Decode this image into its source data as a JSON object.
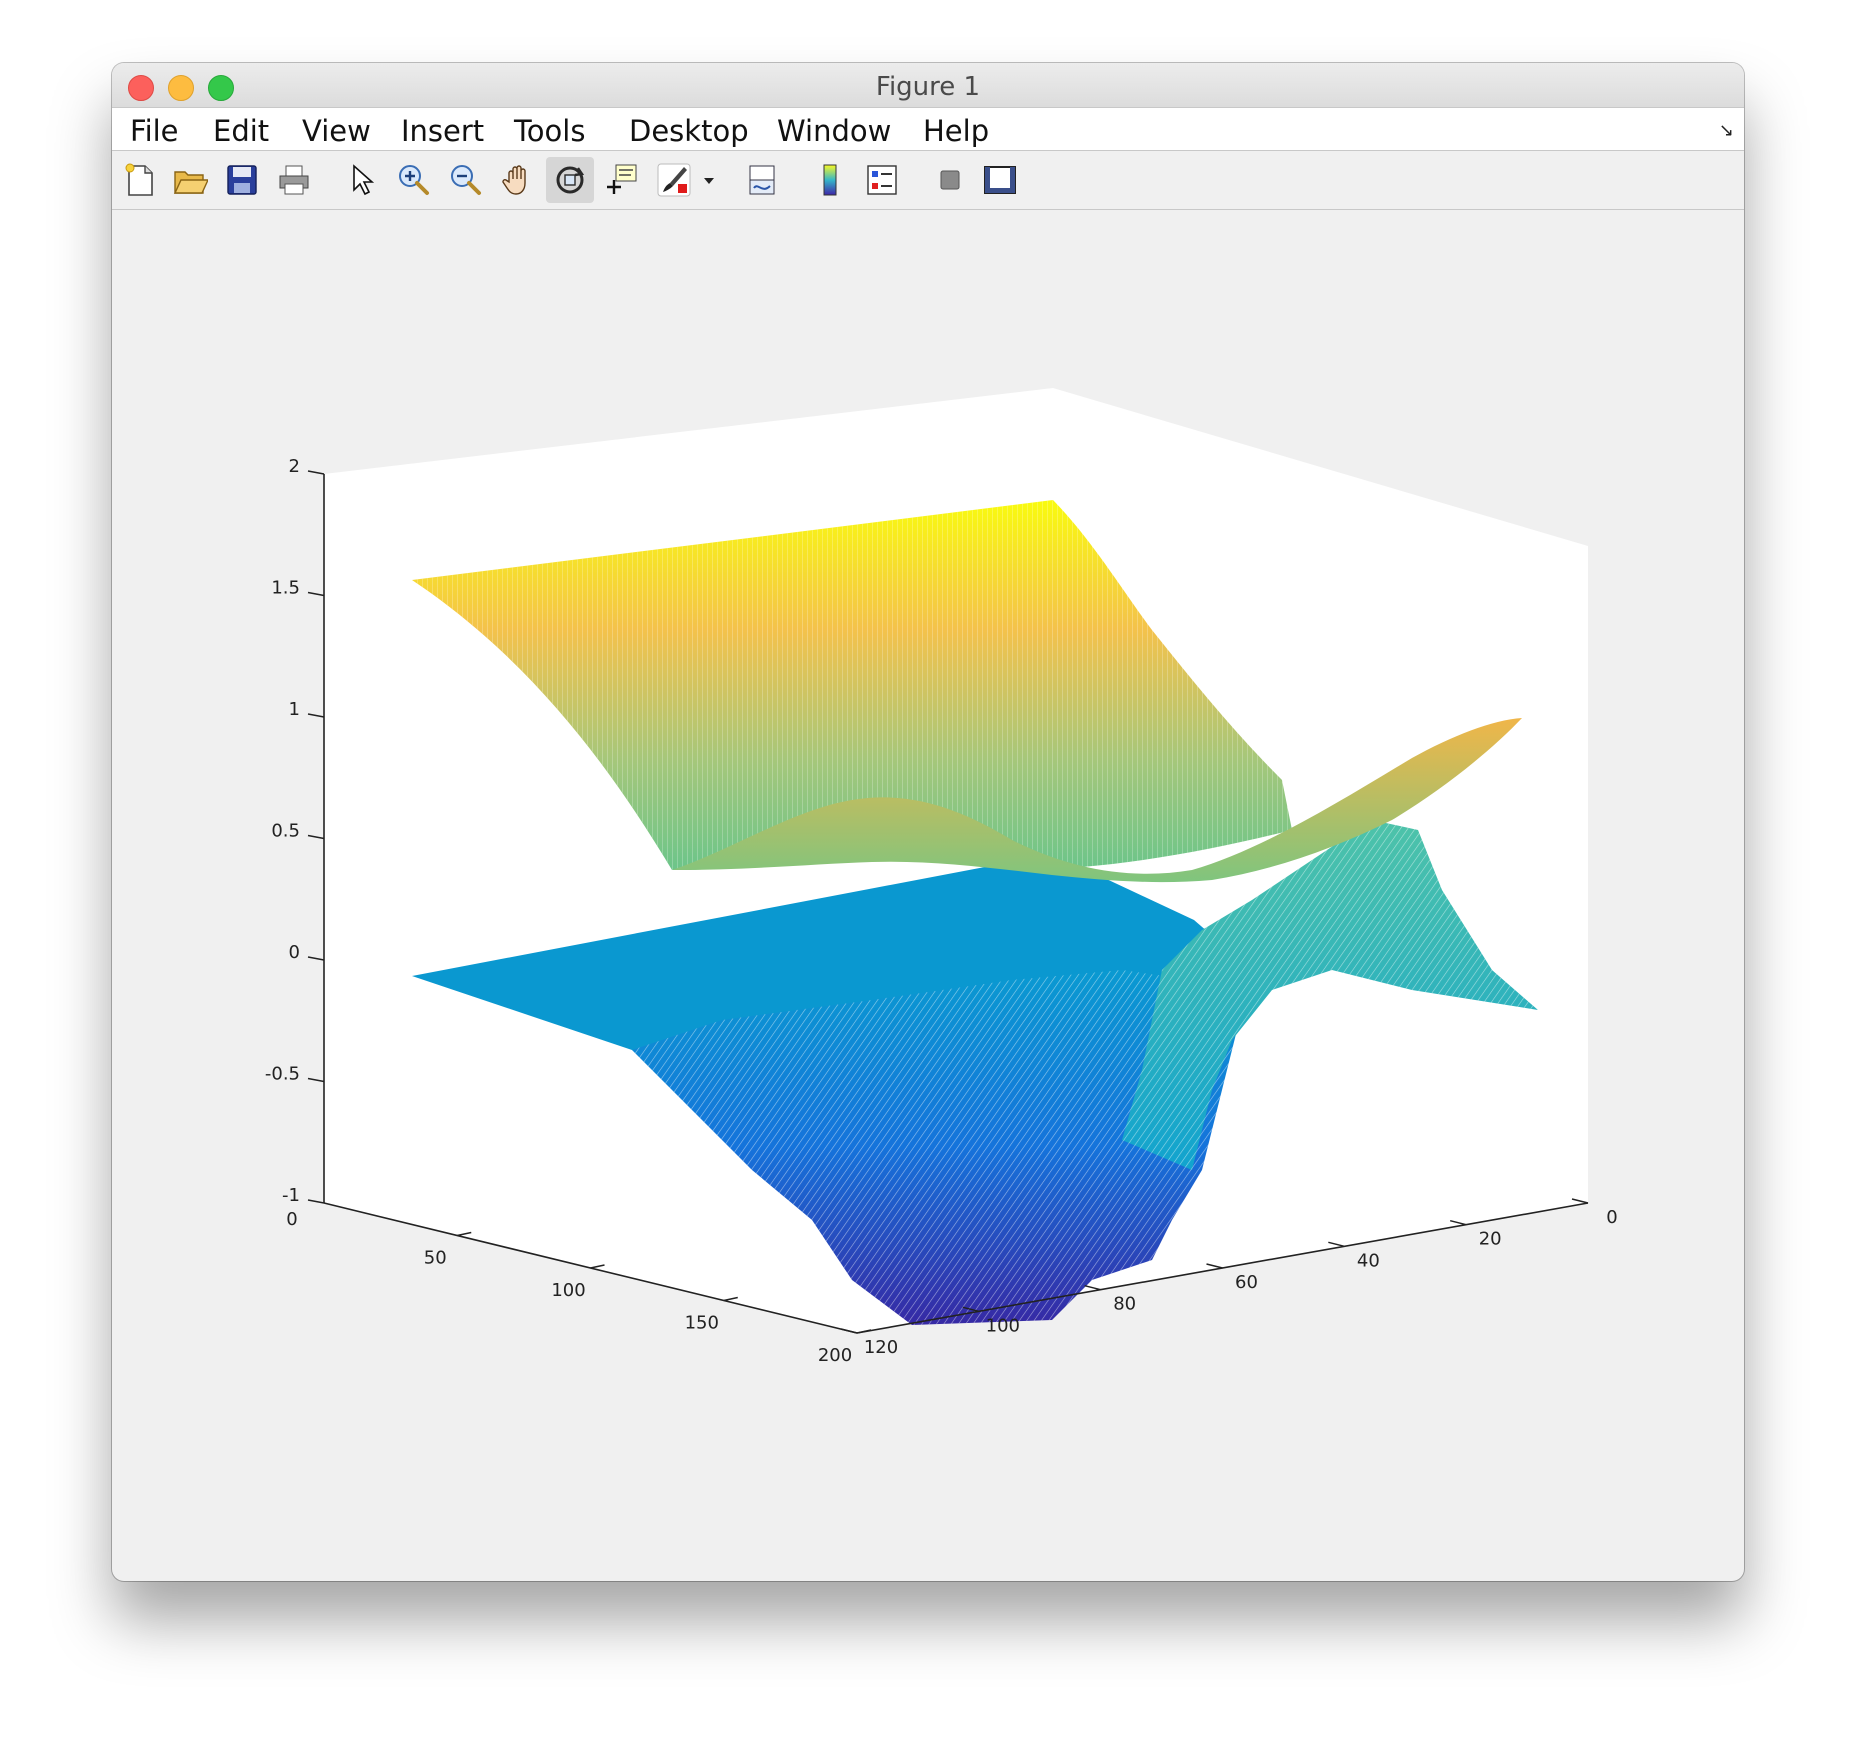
{
  "window": {
    "title": "Figure 1"
  },
  "menu": {
    "items": [
      "File",
      "Edit",
      "View",
      "Insert",
      "Tools",
      "Desktop",
      "Window",
      "Help"
    ]
  },
  "toolbar": {
    "buttons": [
      {
        "icon": "new-figure-icon"
      },
      {
        "icon": "open-file-icon"
      },
      {
        "icon": "save-icon"
      },
      {
        "icon": "print-icon"
      },
      {
        "icon": "edit-plot-arrow-icon"
      },
      {
        "icon": "zoom-in-icon"
      },
      {
        "icon": "zoom-out-icon"
      },
      {
        "icon": "pan-hand-icon"
      },
      {
        "icon": "rotate-3d-icon",
        "active": true
      },
      {
        "icon": "data-cursor-icon"
      },
      {
        "icon": "brush-icon"
      },
      {
        "icon": "brush-dropdown-icon"
      },
      {
        "icon": "link-plot-icon"
      },
      {
        "icon": "colorbar-icon"
      },
      {
        "icon": "legend-icon"
      },
      {
        "icon": "hide-plot-tools-icon"
      },
      {
        "icon": "show-plot-tools-icon"
      }
    ]
  },
  "chart_data": {
    "type": "surface",
    "view": "3d",
    "z_ticks": [
      "2",
      "1.5",
      "1",
      "0.5",
      "0",
      "-0.5",
      "-1"
    ],
    "x_ticks": [
      "0",
      "50",
      "100",
      "150",
      "200"
    ],
    "y_ticks": [
      "0",
      "20",
      "40",
      "60",
      "80",
      "100",
      "120"
    ],
    "zlim": [
      -1,
      2
    ],
    "xlim": [
      0,
      200
    ],
    "ylim": [
      0,
      120
    ],
    "colormap": "parula",
    "series": [
      {
        "surface": "upper",
        "z_min": 0.45,
        "z_max": 1.7
      },
      {
        "surface": "lower",
        "z_min": -1.05,
        "z_max": 0.4
      }
    ]
  }
}
